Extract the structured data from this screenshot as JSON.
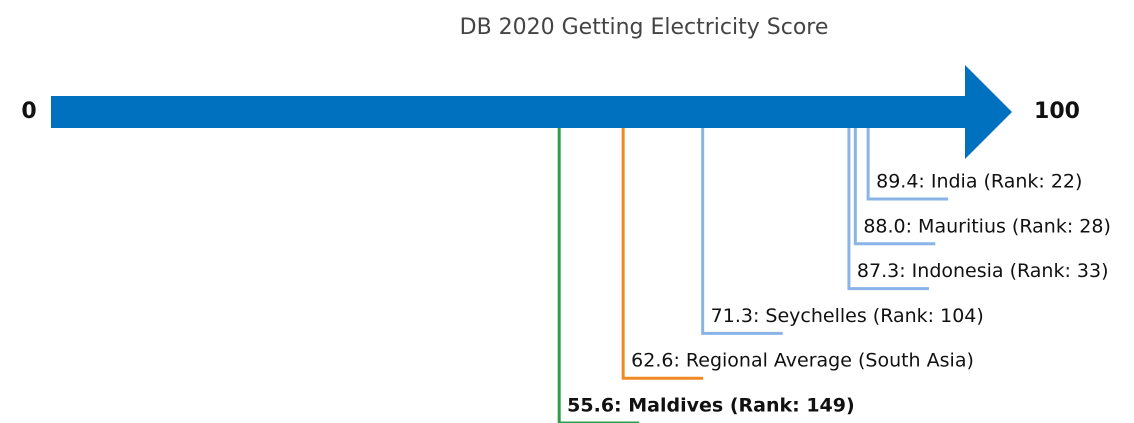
{
  "chart_data": {
    "type": "scale",
    "title": "DB 2020 Getting Electricity Score",
    "xlim": [
      0,
      100
    ],
    "xticks": [
      0,
      100
    ],
    "values": [
      89.4,
      88.0,
      87.3,
      71.3,
      62.6,
      55.6
    ],
    "value_labels": [
      "89.4: India (Rank: 22)",
      "88.0: Mauritius (Rank: 28)",
      "87.3: Indonesia (Rank: 33)",
      "71.3: Seychelles (Rank: 104)",
      "62.6: Regional Average (South Asia)",
      "55.6: Maldives (Rank: 149)"
    ],
    "colors": [
      "#8ab4e8",
      "#8ab4e8",
      "#8ab4e8",
      "#8ab4e8",
      "#f08a24",
      "#2ca048"
    ],
    "bold": [
      false,
      false,
      false,
      false,
      false,
      true
    ],
    "arrow_color": "#0071bf"
  }
}
